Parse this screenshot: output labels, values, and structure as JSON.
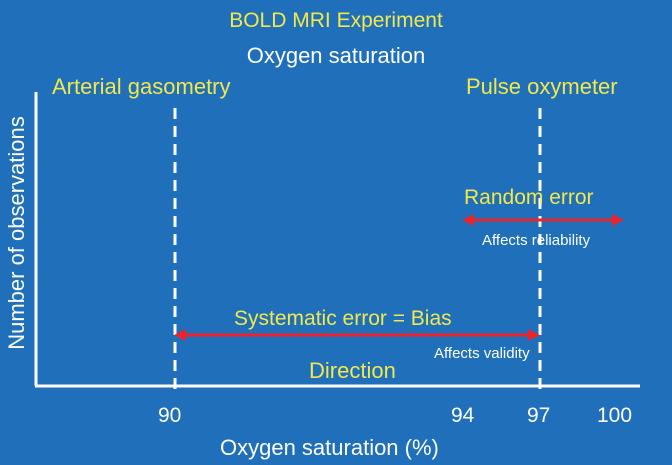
{
  "title": "BOLD MRI Experiment",
  "subtitle": "Oxygen saturation",
  "xlabel": "Oxygen saturation (%)",
  "ylabel": "Number of observations",
  "x_ticks": [
    "90",
    "94",
    "97",
    "100"
  ],
  "left_marker_label": "Arterial gasometry",
  "right_marker_label": "Pulse oxymeter",
  "random_error": {
    "label": "Random error",
    "note": "Affects reliability"
  },
  "systematic_error": {
    "label": "Systematic error = Bias",
    "note": "Affects validity"
  },
  "direction_label": "Direction",
  "colors": {
    "background": "#1f6fba",
    "text_yellow": "#f2e84b",
    "text_white": "#ffffff",
    "arrow_red": "#e8242c"
  }
}
